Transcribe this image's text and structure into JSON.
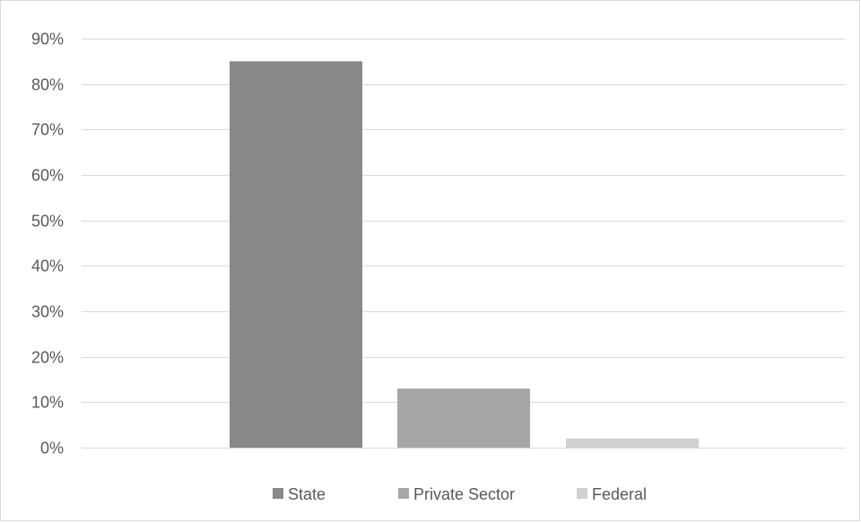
{
  "chart_data": {
    "type": "bar",
    "title": "",
    "xlabel": "",
    "ylabel": "",
    "ylim": [
      0,
      0.9
    ],
    "ytick_step": 0.1,
    "ytick_format": "percent",
    "grid": true,
    "legend_position": "bottom",
    "series": [
      {
        "name": "State",
        "value": 0.85,
        "color": "#898989"
      },
      {
        "name": "Private Sector",
        "value": 0.13,
        "color": "#a6a6a6"
      },
      {
        "name": "Federal",
        "value": 0.02,
        "color": "#d0d0d0"
      }
    ],
    "colors": {
      "grid": "#d9d9d9",
      "text": "#595959",
      "border": "#d9d9d9"
    }
  }
}
